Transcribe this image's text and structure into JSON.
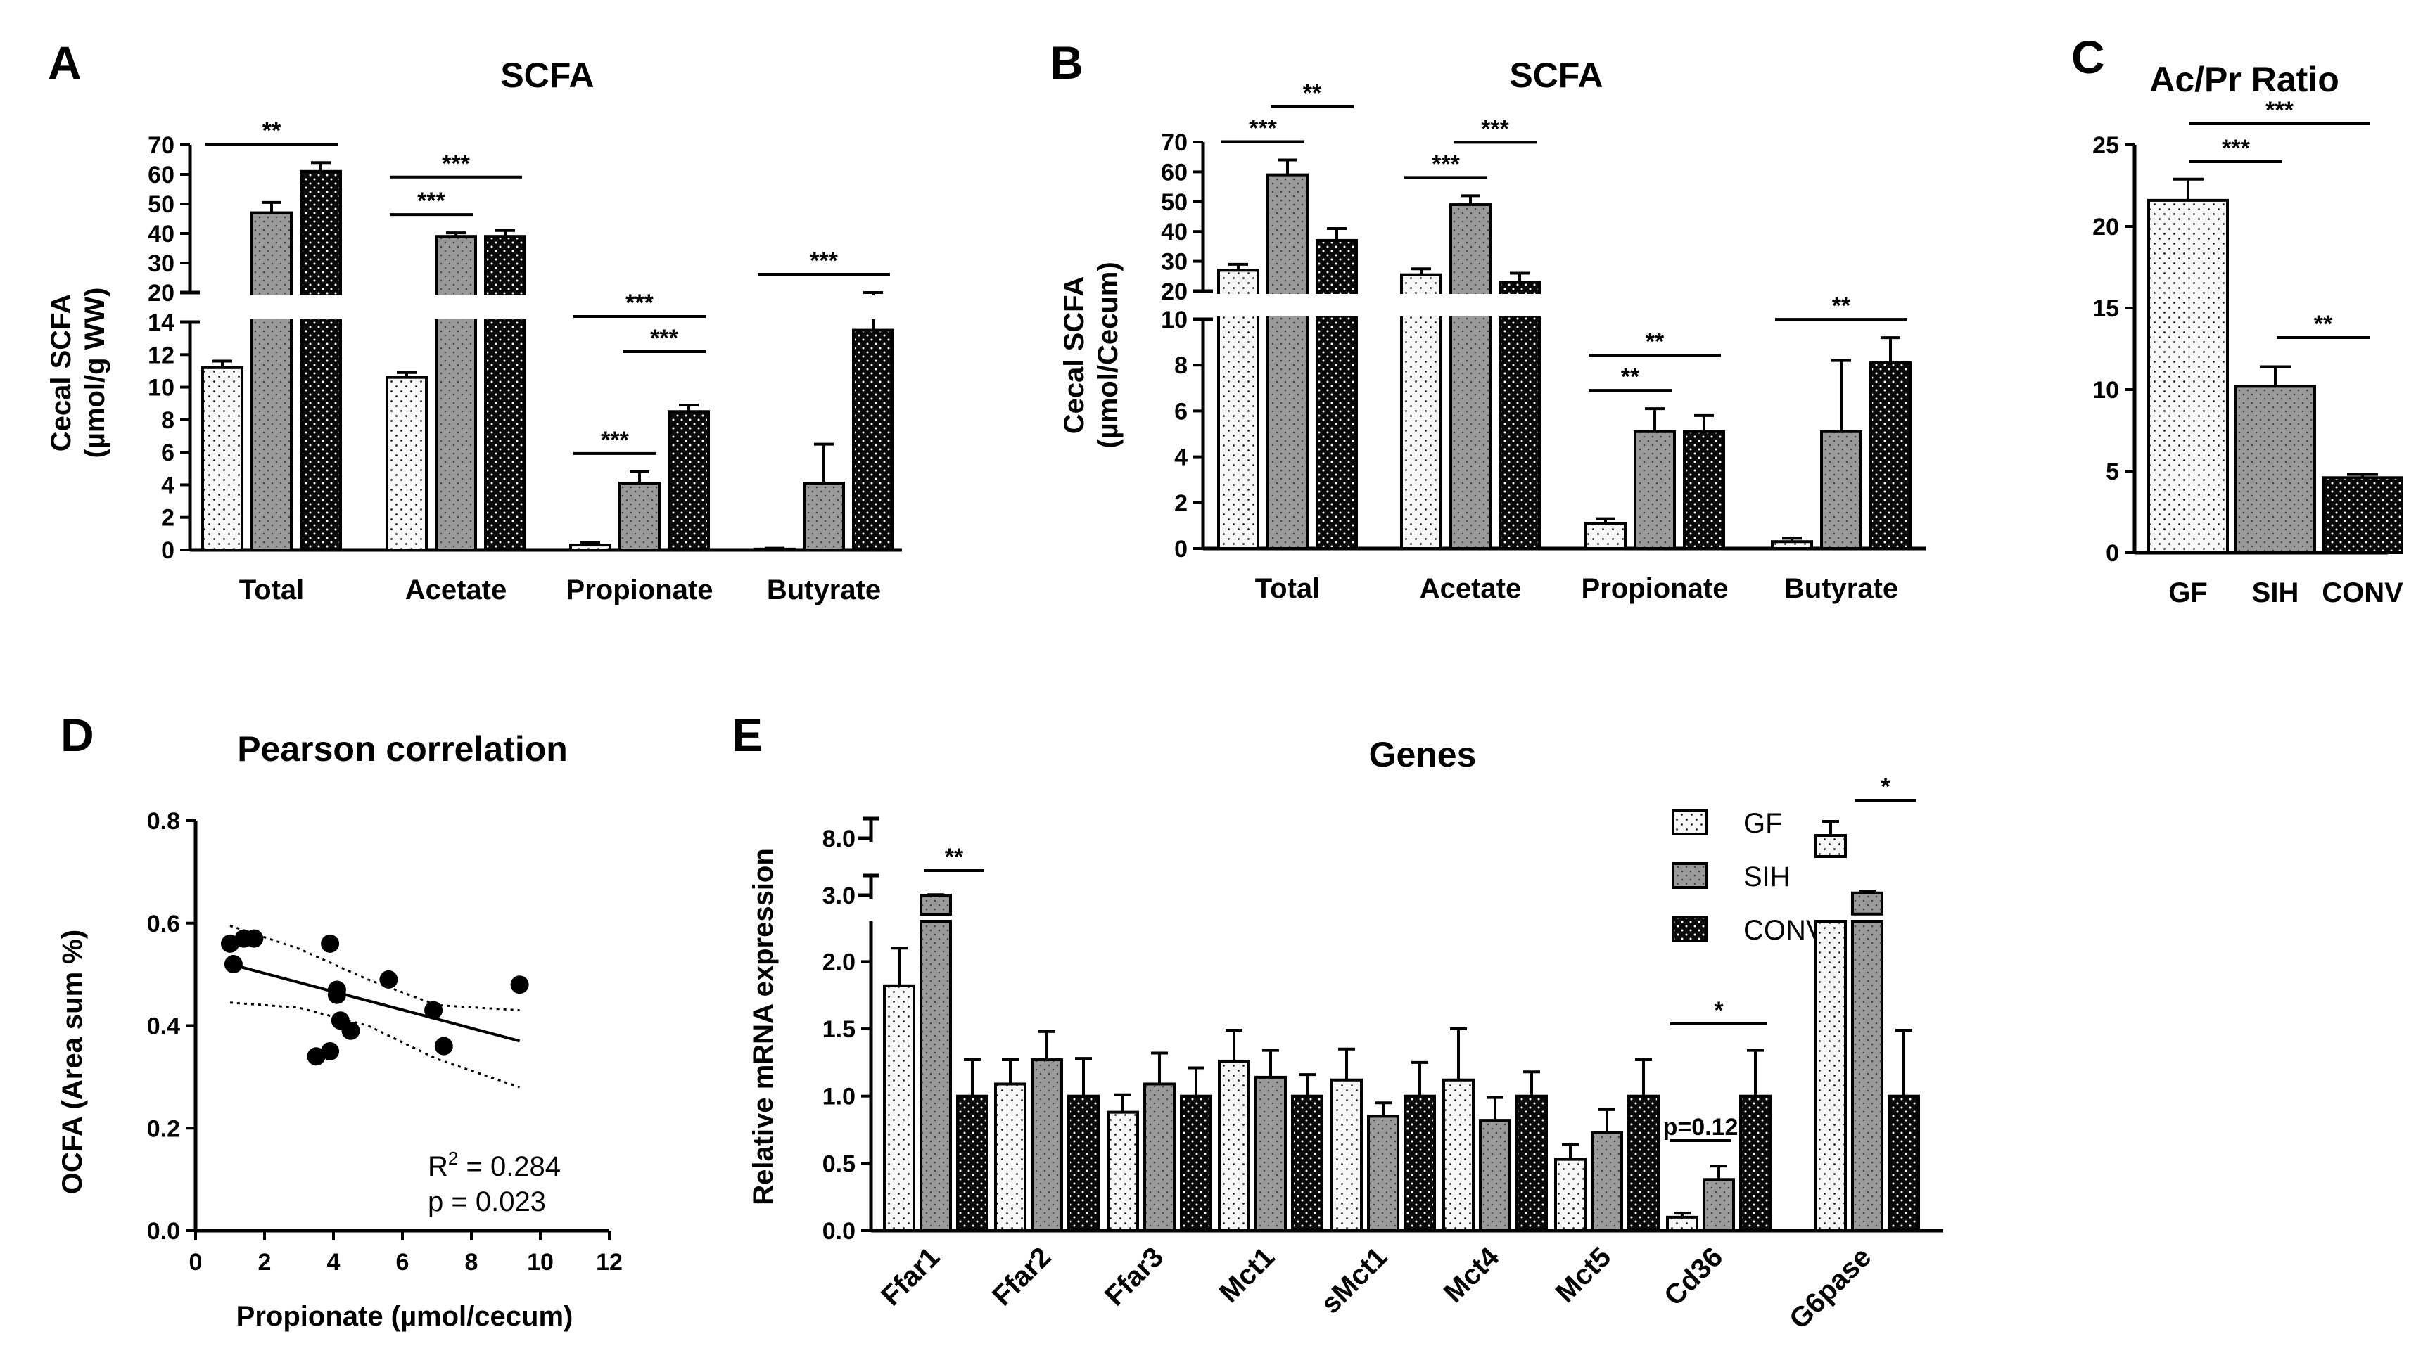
{
  "colors": {
    "GF": "#f7f7f7",
    "SIH": "#9a9a9a",
    "CONV": "#0a0a0a"
  },
  "chart_data": [
    {
      "panel": "A",
      "type": "bar",
      "title": "SCFA",
      "ylabel_line1": "Cecal  SCFA",
      "ylabel_line2": "(µmol/g WW)",
      "categories": [
        "Total",
        "Acetate",
        "Propionate",
        "Butyrate"
      ],
      "groups": [
        "GF",
        "SIH",
        "CONV"
      ],
      "series": [
        {
          "name": "GF",
          "values": [
            11.2,
            10.6,
            0.3,
            0.05
          ],
          "errors": [
            0.4,
            0.3,
            0.15,
            0.05
          ]
        },
        {
          "name": "SIH",
          "values": [
            47,
            39,
            4.1,
            4.1
          ],
          "errors": [
            3.5,
            1.2,
            0.7,
            2.4
          ]
        },
        {
          "name": "CONV",
          "values": [
            61,
            39,
            8.5,
            13.5
          ],
          "errors": [
            3,
            2,
            0.4,
            0.9
          ]
        }
      ],
      "broken_axis": {
        "lower": [
          0,
          14
        ],
        "upper": [
          20,
          70
        ]
      },
      "lower_ticks": [
        "0",
        "2",
        "4",
        "6",
        "8",
        "10",
        "12",
        "14"
      ],
      "upper_ticks": [
        "20",
        "30",
        "40",
        "50",
        "60",
        "70"
      ],
      "significance": [
        {
          "cat": 0,
          "from": 0,
          "to": 2,
          "label": "**"
        },
        {
          "cat": 1,
          "from": 0,
          "to": 1,
          "label": "***"
        },
        {
          "cat": 1,
          "from": 0,
          "to": 2,
          "label": "***"
        },
        {
          "cat": 2,
          "from": 0,
          "to": 1,
          "label": "***"
        },
        {
          "cat": 2,
          "from": 1,
          "to": 2,
          "label": "***"
        },
        {
          "cat": 2,
          "from": 0,
          "to": 2,
          "label": "***"
        },
        {
          "cat": 3,
          "from": 0,
          "to": 2,
          "label": "***"
        }
      ]
    },
    {
      "panel": "B",
      "type": "bar",
      "title": "SCFA",
      "ylabel_line1": "Cecal  SCFA",
      "ylabel_line2": "(µmol/Cecum)",
      "categories": [
        "Total",
        "Acetate",
        "Propionate",
        "Butyrate"
      ],
      "groups": [
        "GF",
        "SIH",
        "CONV"
      ],
      "series": [
        {
          "name": "GF",
          "values": [
            27,
            25.5,
            1.1,
            0.3
          ],
          "errors": [
            2,
            2,
            0.2,
            0.15
          ]
        },
        {
          "name": "SIH",
          "values": [
            59,
            49,
            5.1,
            5.1
          ],
          "errors": [
            5,
            3,
            1,
            3.1
          ]
        },
        {
          "name": "CONV",
          "values": [
            37,
            23,
            5.1,
            8.1
          ],
          "errors": [
            4,
            3,
            0.7,
            1.1
          ]
        }
      ],
      "broken_axis": {
        "lower": [
          0,
          10
        ],
        "upper": [
          20,
          70
        ]
      },
      "lower_ticks": [
        "0",
        "2",
        "4",
        "6",
        "8",
        "10"
      ],
      "upper_ticks": [
        "20",
        "30",
        "40",
        "50",
        "60",
        "70"
      ],
      "significance": [
        {
          "cat": 0,
          "from": 0,
          "to": 1,
          "label": "***"
        },
        {
          "cat": 0,
          "from": 1,
          "to": 2,
          "label": "**"
        },
        {
          "cat": 1,
          "from": 0,
          "to": 1,
          "label": "***"
        },
        {
          "cat": 1,
          "from": 1,
          "to": 2,
          "label": "***"
        },
        {
          "cat": 2,
          "from": 0,
          "to": 1,
          "label": "**"
        },
        {
          "cat": 2,
          "from": 0,
          "to": 2,
          "label": "**"
        },
        {
          "cat": 3,
          "from": 0,
          "to": 2,
          "label": "**"
        }
      ]
    },
    {
      "panel": "C",
      "type": "bar",
      "title": "Ac/Pr Ratio",
      "categories": [
        "GF",
        "SIH",
        "CONV"
      ],
      "values": [
        21.6,
        10.2,
        4.6
      ],
      "errors": [
        1.3,
        1.2,
        0.2
      ],
      "ylim": [
        0,
        25
      ],
      "yticks": [
        "0",
        "5",
        "10",
        "15",
        "20",
        "25"
      ],
      "significance": [
        {
          "from": 0,
          "to": 1,
          "label": "***"
        },
        {
          "from": 0,
          "to": 2,
          "label": "***"
        },
        {
          "from": 1,
          "to": 2,
          "label": "**"
        }
      ]
    },
    {
      "panel": "D",
      "type": "scatter",
      "title": "Pearson correlation",
      "xlabel": "Propionate (µmol/cecum)",
      "ylabel": "OCFA (Area sum %)",
      "xlim": [
        0,
        12
      ],
      "ylim": [
        0,
        0.8
      ],
      "xticks": [
        "0",
        "2",
        "4",
        "6",
        "8",
        "10",
        "12"
      ],
      "yticks": [
        "0.0",
        "0.2",
        "0.4",
        "0.6",
        "0.8"
      ],
      "x": [
        1.0,
        1.1,
        1.4,
        1.7,
        3.5,
        3.9,
        3.9,
        4.1,
        4.1,
        4.2,
        4.5,
        5.6,
        6.9,
        7.2,
        9.4
      ],
      "y": [
        0.56,
        0.52,
        0.57,
        0.57,
        0.34,
        0.35,
        0.56,
        0.46,
        0.47,
        0.41,
        0.39,
        0.49,
        0.43,
        0.36,
        0.48
      ],
      "fit": {
        "x0": 1.0,
        "y0": 0.52,
        "x1": 9.4,
        "y1": 0.37
      },
      "ci_upper": [
        [
          1.0,
          0.595
        ],
        [
          3,
          0.55
        ],
        [
          5,
          0.49
        ],
        [
          7,
          0.44
        ],
        [
          9.4,
          0.43
        ]
      ],
      "ci_lower": [
        [
          1.0,
          0.445
        ],
        [
          3,
          0.435
        ],
        [
          5,
          0.4
        ],
        [
          7,
          0.335
        ],
        [
          9.4,
          0.28
        ]
      ],
      "r2_text": "R",
      "r2_sup": "2",
      "r2_value": " = 0.284",
      "p_text": "p = 0.023"
    },
    {
      "panel": "E",
      "type": "bar",
      "title": "Genes",
      "ylabel": "Relative mRNA expression",
      "categories": [
        "Ffar1",
        "Ffar2",
        "Ffar3",
        "Mct1",
        "sMct1",
        "Mct4",
        "Mct5",
        "Cd36",
        "G6pase"
      ],
      "groups": [
        "GF",
        "SIH",
        "CONV"
      ],
      "series": [
        {
          "name": "GF",
          "values": [
            1.82,
            1.09,
            0.88,
            1.26,
            1.12,
            1.12,
            0.53,
            0.1,
            8.1
          ],
          "errors": [
            0.28,
            0.18,
            0.13,
            0.23,
            0.23,
            0.38,
            0.11,
            0.03,
            0.5
          ]
        },
        {
          "name": "SIH",
          "values": [
            3.0,
            1.27,
            1.09,
            1.14,
            0.85,
            0.82,
            0.73,
            0.38,
            3.2
          ],
          "errors": [
            0.05,
            0.21,
            0.23,
            0.2,
            0.1,
            0.17,
            0.17,
            0.1,
            0.15
          ]
        },
        {
          "name": "CONV",
          "values": [
            1.0,
            1.0,
            1.0,
            1.0,
            1.0,
            1.0,
            1.0,
            1.0,
            1.0
          ],
          "errors": [
            0.27,
            0.28,
            0.21,
            0.16,
            0.25,
            0.18,
            0.27,
            0.34,
            0.49
          ]
        }
      ],
      "broken_axis": {
        "lower": [
          0,
          2.3
        ],
        "marks": [
          3.0,
          8.0
        ]
      },
      "lower_ticks": [
        "0.0",
        "0.5",
        "1.0",
        "1.5",
        "2.0"
      ],
      "upper_ticks": [
        "3.0",
        "8.0"
      ],
      "legend": [
        "GF",
        "SIH",
        "CONV"
      ],
      "significance": [
        {
          "cat": 0,
          "from": 1,
          "to": 2,
          "label": "**"
        },
        {
          "cat": 7,
          "from": 0,
          "to": 1,
          "label": "p=0.12"
        },
        {
          "cat": 7,
          "from": 0,
          "to": 2,
          "label": "*"
        },
        {
          "cat": 8,
          "from": 1,
          "to": 2,
          "label": "*"
        }
      ]
    }
  ]
}
